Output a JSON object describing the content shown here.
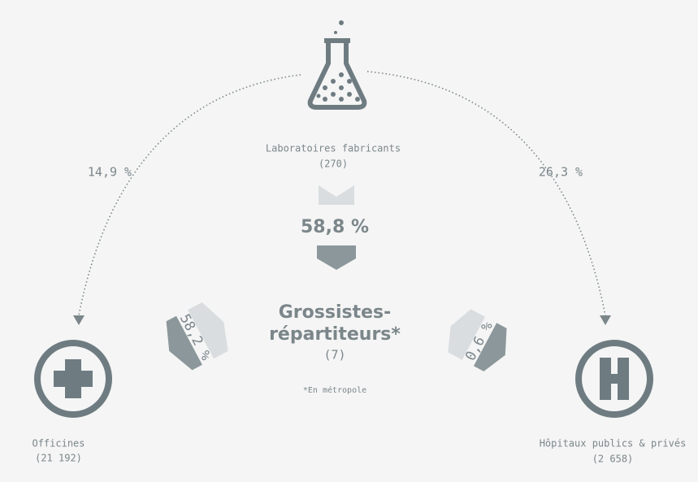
{
  "laboratories": {
    "label": "Laboratoires fabricants",
    "count": "(270)"
  },
  "flows": {
    "to_pharmacies": "14,9 %",
    "to_hospitals": "26,3 %",
    "to_wholesalers": "58,8 %",
    "wholesalers_to_pharmacies": "58,2 %",
    "wholesalers_to_hospitals": "0,6 %"
  },
  "wholesalers": {
    "label_line1": "Grossistes-",
    "label_line2": "répartiteurs*",
    "count": "(7)",
    "note": "*En métropole"
  },
  "pharmacies": {
    "label": "Officines",
    "count": "(21 192)"
  },
  "hospitals": {
    "label": "Hôpitaux publics & privés",
    "count": "(2 658)"
  }
}
